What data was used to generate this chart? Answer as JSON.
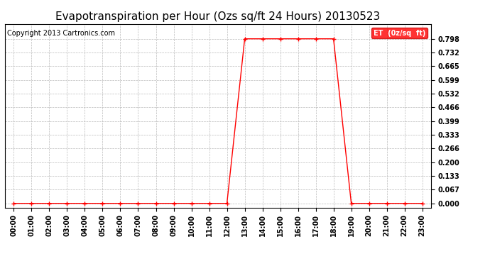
{
  "title": "Evapotranspiration per Hour (Ozs sq/ft 24 Hours) 20130523",
  "copyright": "Copyright 2013 Cartronics.com",
  "legend_label": "ET  (0z/sq  ft)",
  "line_color": "#ff0000",
  "background_color": "#ffffff",
  "grid_color": "#bbbbbb",
  "legend_bg": "#ff0000",
  "legend_text_color": "#ffffff",
  "yticks": [
    0.0,
    0.067,
    0.133,
    0.2,
    0.266,
    0.333,
    0.399,
    0.466,
    0.532,
    0.599,
    0.665,
    0.732,
    0.798
  ],
  "ylim": [
    -0.02,
    0.87
  ],
  "hours": [
    0,
    1,
    2,
    3,
    4,
    5,
    6,
    7,
    8,
    9,
    10,
    11,
    12,
    13,
    14,
    15,
    16,
    17,
    18,
    19,
    20,
    21,
    22,
    23
  ],
  "values": [
    0.0,
    0.0,
    0.0,
    0.0,
    0.0,
    0.0,
    0.0,
    0.0,
    0.0,
    0.0,
    0.0,
    0.0,
    0.0,
    0.798,
    0.798,
    0.798,
    0.798,
    0.798,
    0.798,
    0.0,
    0.0,
    0.0,
    0.0,
    0.0
  ],
  "marker": "+",
  "marker_size": 4,
  "title_fontsize": 11,
  "tick_fontsize": 7,
  "copyright_fontsize": 7
}
